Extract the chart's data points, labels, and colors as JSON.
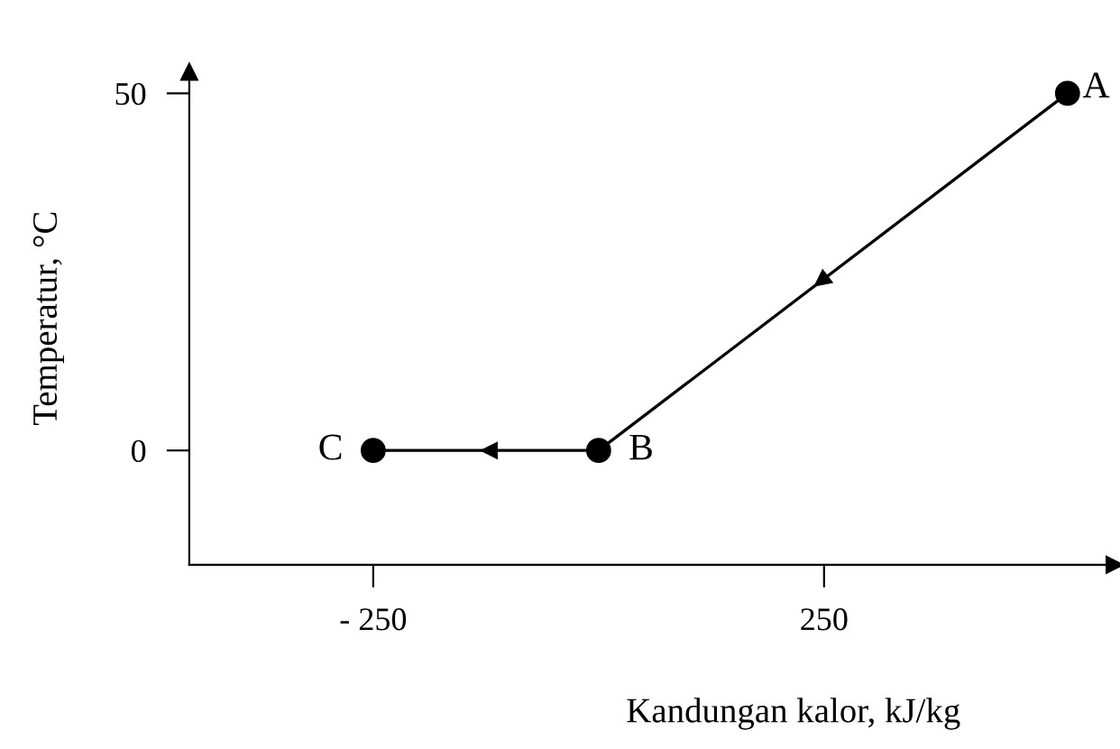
{
  "chart_data": {
    "type": "line",
    "xlabel": "Kandungan kalor, kJ/kg",
    "ylabel": "Temperatur, °C",
    "x": [
      520,
      0,
      -250
    ],
    "series": [
      {
        "color": "#000000",
        "values": [
          50,
          0,
          0
        ]
      }
    ],
    "marker": "circle",
    "line_style": "solid",
    "xlim": [
      -454,
      572
    ],
    "ylim": [
      -16,
      53
    ],
    "xticks": [
      {
        "value": -250,
        "label": "- 250"
      },
      250
    ],
    "yticks": [
      0,
      50
    ],
    "annotations": [
      {
        "text": "A",
        "x": 520,
        "y": 50
      },
      {
        "text": "B",
        "x": 0,
        "y": 0
      },
      {
        "text": "C",
        "x": -250,
        "y": 0
      }
    ],
    "grid": false,
    "legend": false
  }
}
